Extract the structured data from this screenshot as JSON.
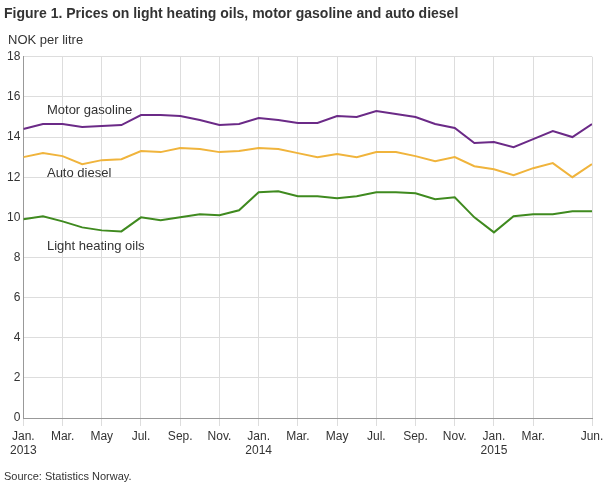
{
  "chart_data": {
    "type": "line",
    "title": "Figure 1. Prices on light heating oils, motor gasoline and auto diesel",
    "y_label": "NOK per litre",
    "source": "Source: Statistics Norway.",
    "categories": [
      "Jan.\n2013",
      null,
      "Mar.",
      null,
      "May",
      null,
      "Jul.",
      null,
      "Sep.",
      null,
      "Nov.",
      null,
      "Jan.\n2014",
      null,
      "Mar.",
      null,
      "May",
      null,
      "Jul.",
      null,
      "Sep.",
      null,
      "Nov.",
      null,
      "Jan.\n2015",
      null,
      "Mar.",
      null,
      null,
      "Jun."
    ],
    "series": [
      {
        "name": "Motor gasoline",
        "color": "#6b2a87",
        "values": [
          14.4,
          14.65,
          14.65,
          14.5,
          14.55,
          14.6,
          15.1,
          15.1,
          15.05,
          14.85,
          14.6,
          14.65,
          14.95,
          14.85,
          14.7,
          14.7,
          15.05,
          15.0,
          15.3,
          15.15,
          15.0,
          14.65,
          14.45,
          13.7,
          13.75,
          13.5,
          13.9,
          14.3,
          14.0,
          14.65
        ]
      },
      {
        "name": "Auto diesel",
        "color": "#f0b43c",
        "values": [
          13.0,
          13.2,
          13.05,
          12.65,
          12.85,
          12.9,
          13.3,
          13.25,
          13.45,
          13.4,
          13.25,
          13.3,
          13.45,
          13.4,
          13.2,
          13.0,
          13.15,
          13.0,
          13.25,
          13.25,
          13.05,
          12.8,
          13.0,
          12.55,
          12.4,
          12.1,
          12.45,
          12.7,
          12.0,
          12.65
        ]
      },
      {
        "name": "Light heating oils",
        "color": "#3f8a1f",
        "values": [
          9.9,
          10.05,
          9.8,
          9.5,
          9.35,
          9.3,
          10.0,
          9.85,
          10.0,
          10.15,
          10.1,
          10.35,
          11.25,
          11.3,
          11.05,
          11.05,
          10.95,
          11.05,
          11.25,
          11.25,
          11.2,
          10.9,
          11.0,
          10.0,
          9.25,
          10.05,
          10.15,
          10.15,
          10.3,
          10.3
        ]
      }
    ],
    "ylim": [
      0,
      18
    ],
    "yticks": [
      0,
      2,
      4,
      6,
      8,
      10,
      12,
      14,
      16,
      18
    ],
    "grid": true
  }
}
